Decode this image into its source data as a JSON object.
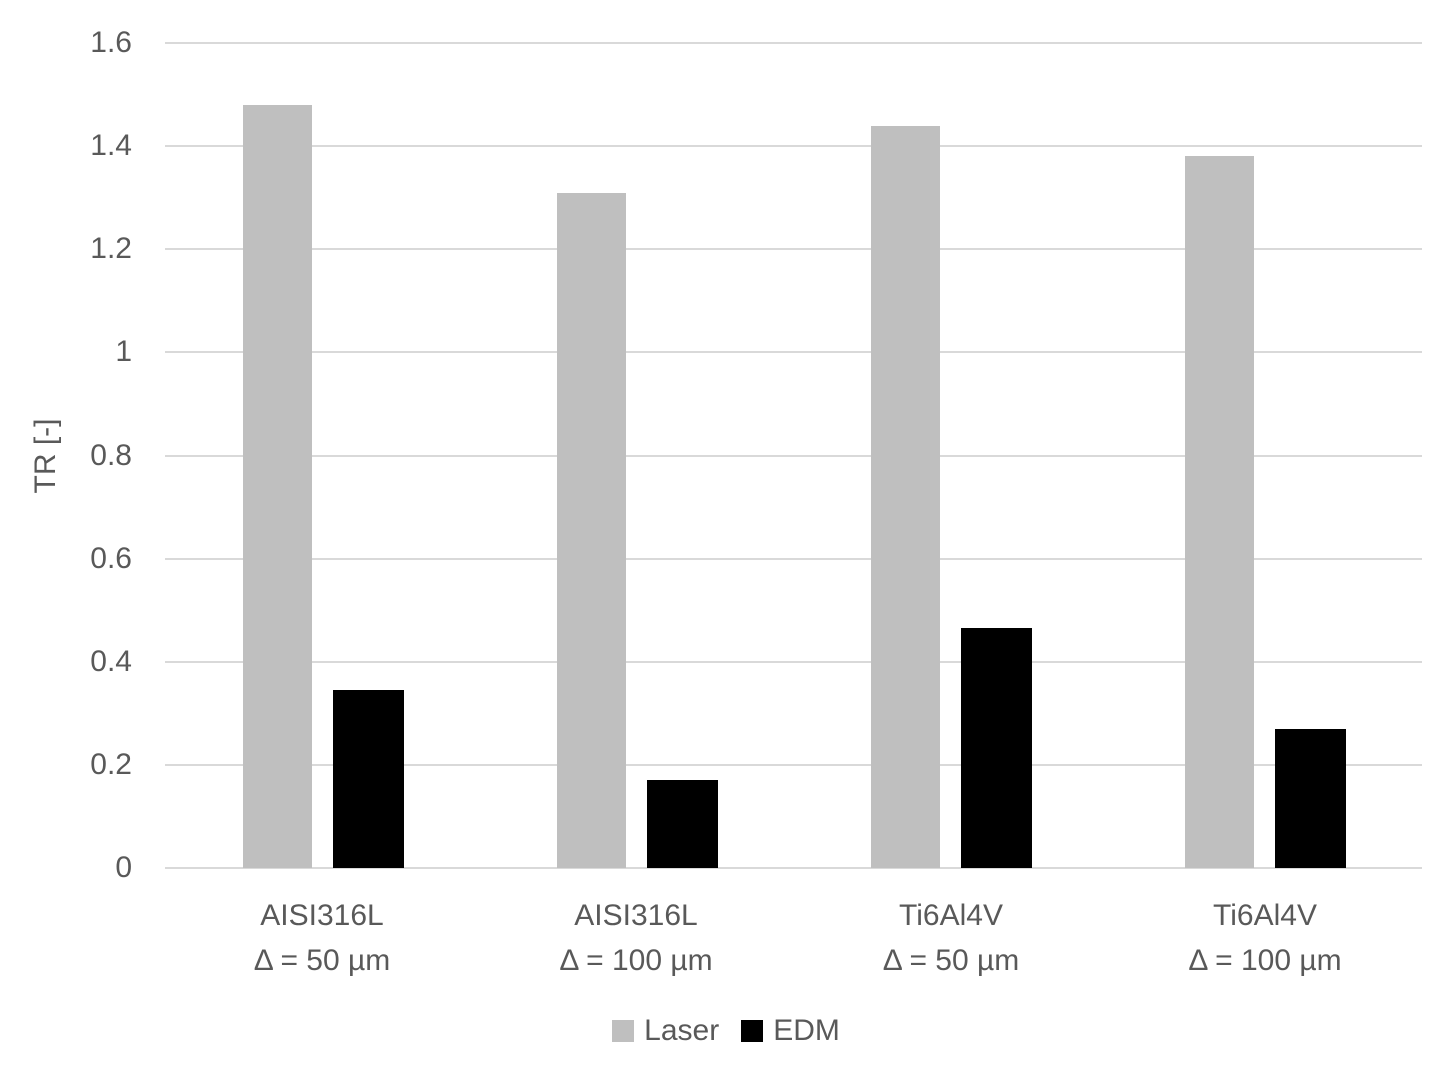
{
  "chart_data": {
    "type": "bar",
    "title": "",
    "xlabel": "",
    "ylabel": "TR [-]",
    "ylim": [
      0,
      1.6
    ],
    "ytick_step": 0.2,
    "ytick_labels": [
      "0",
      "0.2",
      "0.4",
      "0.6",
      "0.8",
      "1",
      "1.2",
      "1.4",
      "1.6"
    ],
    "grid": true,
    "legend_position": "bottom-center",
    "categories": [
      {
        "line1": "AISI316L",
        "line2": "Δ = 50 µm"
      },
      {
        "line1": "AISI316L",
        "line2": "Δ = 100 µm"
      },
      {
        "line1": "Ti6Al4V",
        "line2": "Δ = 50 µm"
      },
      {
        "line1": "Ti6Al4V",
        "line2": "Δ = 100 µm"
      }
    ],
    "series": [
      {
        "name": "Laser",
        "color": "#BFBFBF",
        "values": [
          1.48,
          1.31,
          1.44,
          1.38
        ]
      },
      {
        "name": "EDM",
        "color": "#000000",
        "values": [
          0.345,
          0.17,
          0.465,
          0.27
        ]
      }
    ]
  },
  "colors": {
    "background": "#FFFFFF",
    "gridline": "#D9D9D9",
    "axis_line": "#D9D9D9",
    "text": "#595959"
  }
}
